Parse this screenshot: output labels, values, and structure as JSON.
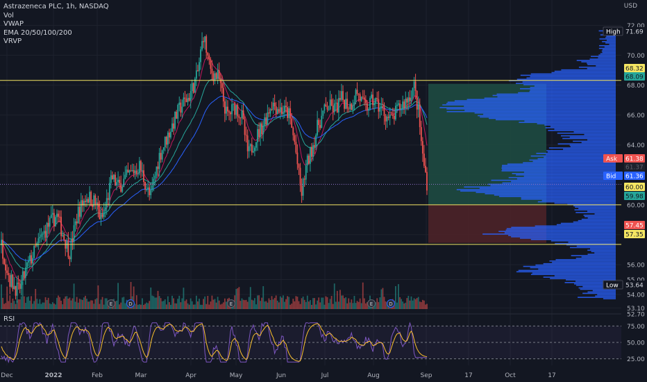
{
  "header": {
    "title": "Astrazeneca PLC, 1h, NASDAQ",
    "indicators": [
      "Vol",
      "VWAP",
      "EMA 20/50/100/200",
      "VRVP"
    ],
    "currency": "USD"
  },
  "colors": {
    "background": "#131722",
    "grid": "#1e222d",
    "up": "#26a69a",
    "down": "#ef5350",
    "level_line": "#f5e663",
    "profile": "#2962ff",
    "zone_profit": "#1e4a41",
    "zone_loss": "#4d2228",
    "rsi_line": "#7e57c2",
    "rsi_signal": "#fbc02d",
    "ema20": "#c2185b",
    "ema50": "#26a69a",
    "vwap": "#2962ff"
  },
  "chart_data": {
    "type": "candlestick",
    "y_range": [
      52.7,
      72.3
    ],
    "yticks": [
      72.0,
      70.0,
      68.0,
      66.0,
      64.0,
      62.0,
      60.0,
      58.0,
      56.0,
      55.0,
      54.0,
      53.1,
      52.7
    ],
    "x_labels": [
      "Dec",
      "2022",
      "Feb",
      "Mar",
      "Apr",
      "May",
      "Jun",
      "Jul",
      "Aug",
      "Sep",
      "17",
      "Oct",
      "17"
    ],
    "price_path": [
      [
        0,
        57.3
      ],
      [
        0.02,
        55.0
      ],
      [
        0.04,
        54.2
      ],
      [
        0.06,
        55.8
      ],
      [
        0.09,
        57.6
      ],
      [
        0.11,
        58.6
      ],
      [
        0.13,
        59.3
      ],
      [
        0.145,
        58.0
      ],
      [
        0.16,
        56.8
      ],
      [
        0.18,
        59.5
      ],
      [
        0.2,
        60.6
      ],
      [
        0.22,
        60.2
      ],
      [
        0.235,
        58.9
      ],
      [
        0.245,
        59.9
      ],
      [
        0.26,
        61.8
      ],
      [
        0.275,
        61.2
      ],
      [
        0.3,
        62.0
      ],
      [
        0.325,
        62.6
      ],
      [
        0.35,
        60.4
      ],
      [
        0.37,
        63.2
      ],
      [
        0.395,
        64.9
      ],
      [
        0.42,
        66.5
      ],
      [
        0.44,
        67.2
      ],
      [
        0.46,
        68.6
      ],
      [
        0.475,
        71.4
      ],
      [
        0.49,
        69.0
      ],
      [
        0.51,
        68.5
      ],
      [
        0.53,
        65.9
      ],
      [
        0.55,
        66.6
      ],
      [
        0.565,
        65.9
      ],
      [
        0.58,
        63.3
      ],
      [
        0.595,
        64.3
      ],
      [
        0.615,
        65.4
      ],
      [
        0.635,
        66.8
      ],
      [
        0.655,
        66.4
      ],
      [
        0.675,
        66.1
      ],
      [
        0.69,
        64.0
      ],
      [
        0.705,
        60.6
      ],
      [
        0.715,
        62.4
      ],
      [
        0.73,
        63.8
      ],
      [
        0.745,
        65.4
      ],
      [
        0.765,
        66.6
      ],
      [
        0.785,
        66.4
      ],
      [
        0.8,
        67.1
      ],
      [
        0.82,
        66.6
      ],
      [
        0.835,
        67.6
      ],
      [
        0.855,
        66.4
      ],
      [
        0.875,
        67.0
      ],
      [
        0.895,
        66.3
      ],
      [
        0.915,
        65.6
      ],
      [
        0.935,
        66.5
      ],
      [
        0.955,
        67.1
      ],
      [
        0.97,
        67.9
      ],
      [
        0.98,
        66.2
      ],
      [
        0.99,
        63.2
      ],
      [
        1.0,
        61.5
      ]
    ],
    "rsi_levels": [
      75.0,
      50.0,
      25.0
    ],
    "levels": [
      {
        "name": "resistance",
        "price": 68.32
      },
      {
        "name": "pivot",
        "price": 60.0
      },
      {
        "name": "support",
        "price": 57.35
      }
    ],
    "position": {
      "entry": 60.0,
      "target": 68.09,
      "stop": 57.45
    },
    "current_price": 61.37,
    "price_labels": [
      {
        "text": "High",
        "value": "71.69",
        "price": 71.69,
        "style": "dark"
      },
      {
        "text": "",
        "value": "68.32",
        "price": 68.32,
        "style": "yellow"
      },
      {
        "text": "",
        "value": "68.09",
        "price": 68.09,
        "style": "green"
      },
      {
        "text": "Ask",
        "value": "61.38",
        "price": 61.38,
        "style": "red"
      },
      {
        "text": "",
        "value": "61.37",
        "price": 61.37,
        "style": "dim"
      },
      {
        "text": "Bid",
        "value": "61.36",
        "price": 61.36,
        "style": "blue"
      },
      {
        "text": "",
        "value": "60.00",
        "price": 60.0,
        "style": "yellow"
      },
      {
        "text": "",
        "value": "59.98",
        "price": 59.98,
        "style": "green"
      },
      {
        "text": "",
        "value": "57.45",
        "price": 57.45,
        "style": "red"
      },
      {
        "text": "",
        "value": "57.35",
        "price": 57.35,
        "style": "yellow"
      },
      {
        "text": "Low",
        "value": "53.64",
        "price": 53.64,
        "style": "dark"
      }
    ],
    "rsi_title": "RSI"
  }
}
